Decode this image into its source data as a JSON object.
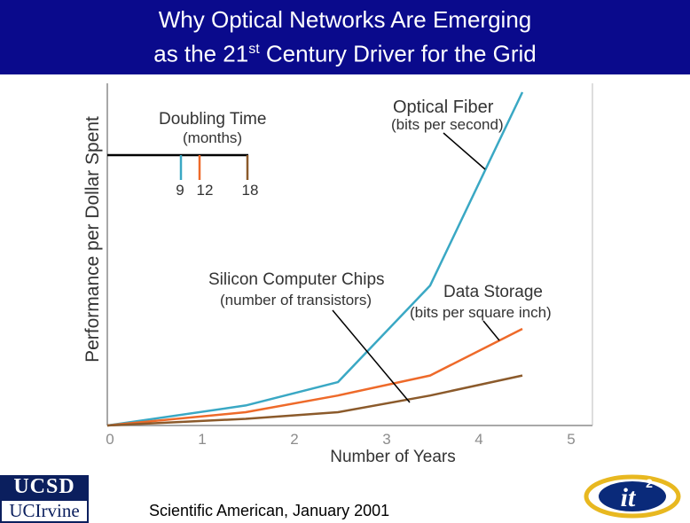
{
  "header": {
    "title_line1": "Why Optical Networks Are Emerging",
    "title_line2_pre": "as the 21",
    "title_line2_sup": "st",
    "title_line2_post": " Century Driver for the Grid"
  },
  "chart_data": {
    "type": "line",
    "xlabel": "Number of Years",
    "ylabel": "Performance per Dollar Spent",
    "xlim": [
      0,
      5
    ],
    "ylim": [
      0,
      100
    ],
    "x_ticks": [
      "0",
      "1",
      "2",
      "3",
      "4",
      "5"
    ],
    "grid": false,
    "series": [
      {
        "name": "Optical Fiber",
        "sublabel": "(bits per second)",
        "color": "#3aa8c4",
        "x": [
          0,
          1.5,
          2.5,
          3.5,
          4.5
        ],
        "y": [
          0,
          6,
          13,
          42,
          100
        ]
      },
      {
        "name": "Data Storage",
        "sublabel": "(bits per square inch)",
        "color": "#ee6a2a",
        "x": [
          0,
          1.5,
          2.5,
          3.5,
          4.5
        ],
        "y": [
          0,
          4,
          9,
          15,
          29
        ]
      },
      {
        "name": "Silicon Computer Chips",
        "sublabel": "(number of transistors)",
        "color": "#8b5a2b",
        "x": [
          0,
          1.5,
          2.5,
          3.5,
          4.5
        ],
        "y": [
          0,
          2,
          4,
          9,
          15
        ]
      }
    ],
    "doubling_time": {
      "title": "Doubling Time",
      "subtitle": "(months)",
      "values": [
        {
          "label": "9",
          "color": "#3aa8c4"
        },
        {
          "label": "12",
          "color": "#ee6a2a"
        },
        {
          "label": "18",
          "color": "#8b5a2b"
        }
      ]
    }
  },
  "footer": {
    "citation": "Scientific American, January 2001",
    "logo_ucsd": "UCSD",
    "logo_uci": "UCIrvine",
    "logo_it2": "it",
    "logo_it2_sup": "2"
  }
}
